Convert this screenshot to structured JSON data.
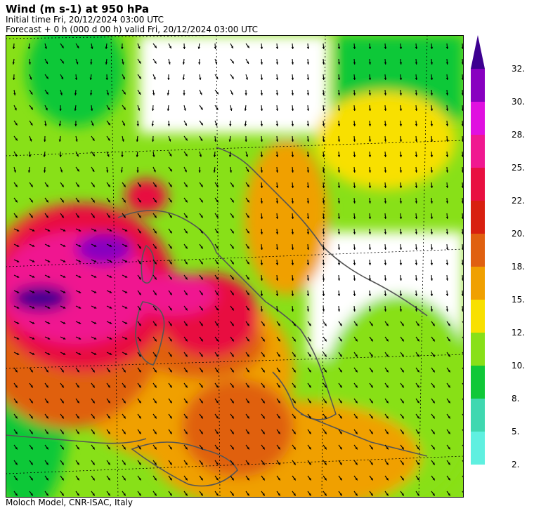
{
  "header": {
    "title": "Wind (m s-1) at 950 hPa",
    "initial_time": "Initial time  Fri, 20/12/2024  03:00 UTC",
    "forecast": "Forecast  +   0 h  (000 d 00 h)  valid Fri, 20/12/2024 03:00 UTC"
  },
  "footer": {
    "credit": "Moloch Model, CNR-ISAC, Italy"
  },
  "colorbar": {
    "levels": [
      "2.",
      "5.",
      "8.",
      "10.",
      "12.",
      "15.",
      "18.",
      "20.",
      "22.",
      "25.",
      "28.",
      "30.",
      "32."
    ],
    "colors": [
      "#5ff0e0",
      "#3fd8b0",
      "#10c838",
      "#88e018",
      "#f8e000",
      "#f0a000",
      "#e06010",
      "#d82010",
      "#e81040",
      "#f01890",
      "#e010e0",
      "#8800c0",
      "#3c0090"
    ],
    "extend": "max"
  }
}
